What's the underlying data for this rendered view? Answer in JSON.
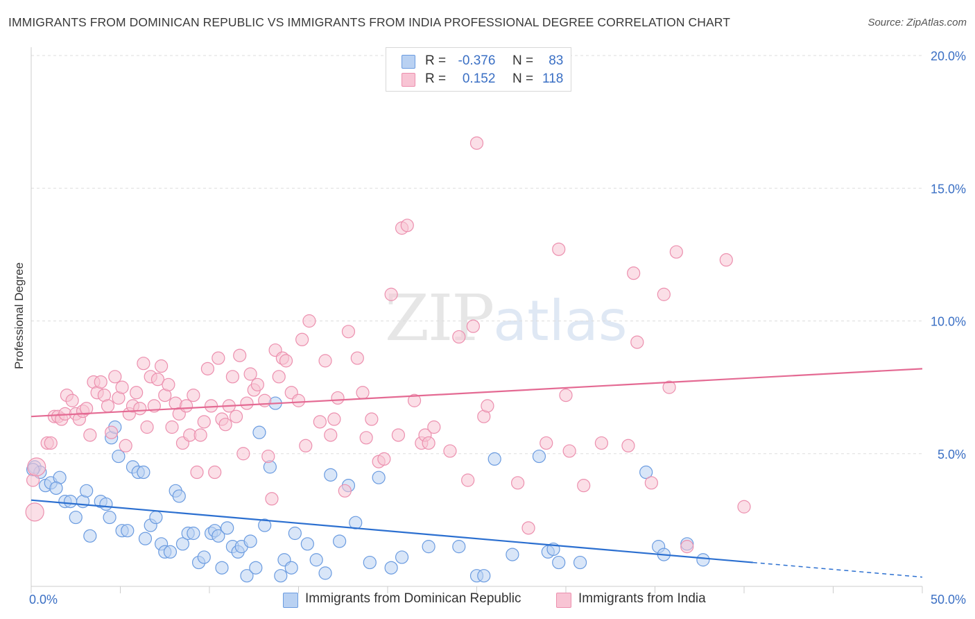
{
  "header": {
    "title": "IMMIGRANTS FROM DOMINICAN REPUBLIC VS IMMIGRANTS FROM INDIA PROFESSIONAL DEGREE CORRELATION CHART",
    "source": "Source: ZipAtlas.com"
  },
  "watermark": {
    "zip": "ZIP",
    "atlas": "atlas"
  },
  "legend": {
    "series1": {
      "r_label": "R =",
      "r_value": "-0.376",
      "n_label": "N =",
      "n_value": "83"
    },
    "series2": {
      "r_label": "R =",
      "r_value": "0.152",
      "n_label": "N =",
      "n_value": "118"
    }
  },
  "colors": {
    "blue_fill": "#b9d1f2",
    "blue_stroke": "#6a9be0",
    "blue_line": "#2b6fd0",
    "pink_fill": "#f8c4d4",
    "pink_stroke": "#ec8fae",
    "pink_line": "#e46a93",
    "axis_label": "#3a6fc4",
    "grid": "#dddddd"
  },
  "chart_data": {
    "type": "scatter",
    "title": "IMMIGRANTS FROM DOMINICAN REPUBLIC VS IMMIGRANTS FROM INDIA PROFESSIONAL DEGREE CORRELATION CHART",
    "ylabel": "Professional Degree",
    "xlabel": "",
    "xlim": [
      0,
      50
    ],
    "ylim": [
      0,
      20
    ],
    "x_tick_labels": [
      "0.0%",
      "50.0%"
    ],
    "y_ticks": [
      5,
      10,
      15,
      20
    ],
    "y_tick_labels": [
      "5.0%",
      "10.0%",
      "15.0%",
      "20.0%"
    ],
    "grid": "horizontal dashed",
    "legend_position": "top-center",
    "series": [
      {
        "name": "Immigrants from Dominican Republic",
        "color": "#6a9be0",
        "trend": {
          "x": [
            0,
            40.5
          ],
          "y": [
            3.25,
            0.9
          ],
          "dashed_to": [
            50,
            0.35
          ]
        },
        "points": [
          [
            0.2,
            4.5
          ],
          [
            0.5,
            4.3
          ],
          [
            0.8,
            3.8
          ],
          [
            1.1,
            3.9
          ],
          [
            1.6,
            4.1
          ],
          [
            1.9,
            3.2
          ],
          [
            2.2,
            3.2
          ],
          [
            2.5,
            2.6
          ],
          [
            2.9,
            3.2
          ],
          [
            3.1,
            3.6
          ],
          [
            3.3,
            1.9
          ],
          [
            3.9,
            3.2
          ],
          [
            4.2,
            3.1
          ],
          [
            4.4,
            2.6
          ],
          [
            4.5,
            5.6
          ],
          [
            4.7,
            6.0
          ],
          [
            4.9,
            4.9
          ],
          [
            5.1,
            2.1
          ],
          [
            5.4,
            2.1
          ],
          [
            5.7,
            4.5
          ],
          [
            6.0,
            4.3
          ],
          [
            6.3,
            4.3
          ],
          [
            6.4,
            1.8
          ],
          [
            6.7,
            2.3
          ],
          [
            7.0,
            2.6
          ],
          [
            7.3,
            1.6
          ],
          [
            7.5,
            1.3
          ],
          [
            7.8,
            1.3
          ],
          [
            8.1,
            3.6
          ],
          [
            8.3,
            3.4
          ],
          [
            8.5,
            1.6
          ],
          [
            8.8,
            2.0
          ],
          [
            9.1,
            2.0
          ],
          [
            9.4,
            0.9
          ],
          [
            9.7,
            1.1
          ],
          [
            10.1,
            2.0
          ],
          [
            10.3,
            2.1
          ],
          [
            10.5,
            1.9
          ],
          [
            10.7,
            0.7
          ],
          [
            11.0,
            2.2
          ],
          [
            11.3,
            1.5
          ],
          [
            11.6,
            1.3
          ],
          [
            11.8,
            1.5
          ],
          [
            12.1,
            0.4
          ],
          [
            12.3,
            1.7
          ],
          [
            12.6,
            0.7
          ],
          [
            12.8,
            5.8
          ],
          [
            13.1,
            2.3
          ],
          [
            13.4,
            4.5
          ],
          [
            13.7,
            6.9
          ],
          [
            14.0,
            0.4
          ],
          [
            14.2,
            1.0
          ],
          [
            14.6,
            0.7
          ],
          [
            14.8,
            2.0
          ],
          [
            15.5,
            1.6
          ],
          [
            16.0,
            1.0
          ],
          [
            16.5,
            0.5
          ],
          [
            16.8,
            4.2
          ],
          [
            17.3,
            1.7
          ],
          [
            17.8,
            3.8
          ],
          [
            18.2,
            2.4
          ],
          [
            19.0,
            0.9
          ],
          [
            19.5,
            4.1
          ],
          [
            20.2,
            0.7
          ],
          [
            20.8,
            1.1
          ],
          [
            22.3,
            1.5
          ],
          [
            24.0,
            1.5
          ],
          [
            25.0,
            0.4
          ],
          [
            25.4,
            0.4
          ],
          [
            26.0,
            4.8
          ],
          [
            27.0,
            1.2
          ],
          [
            28.5,
            4.9
          ],
          [
            29.0,
            1.3
          ],
          [
            29.3,
            1.4
          ],
          [
            29.6,
            0.9
          ],
          [
            30.8,
            0.9
          ],
          [
            34.5,
            4.3
          ],
          [
            35.2,
            1.5
          ],
          [
            35.5,
            1.2
          ],
          [
            36.8,
            1.6
          ],
          [
            37.7,
            1.0
          ],
          [
            0.1,
            4.4
          ],
          [
            1.4,
            3.7
          ]
        ]
      },
      {
        "name": "Immigrants from India",
        "color": "#ec8fae",
        "trend": {
          "x": [
            0,
            50
          ],
          "y": [
            6.4,
            8.2
          ]
        },
        "points": [
          [
            0.1,
            4.0
          ],
          [
            0.2,
            2.8
          ],
          [
            0.3,
            4.5
          ],
          [
            0.9,
            5.4
          ],
          [
            1.1,
            5.4
          ],
          [
            1.3,
            6.4
          ],
          [
            1.5,
            6.4
          ],
          [
            1.7,
            6.3
          ],
          [
            1.9,
            6.5
          ],
          [
            2.0,
            7.2
          ],
          [
            2.3,
            7.0
          ],
          [
            2.5,
            6.5
          ],
          [
            2.7,
            6.3
          ],
          [
            2.9,
            6.6
          ],
          [
            3.1,
            6.7
          ],
          [
            3.3,
            5.7
          ],
          [
            3.5,
            7.7
          ],
          [
            3.7,
            7.3
          ],
          [
            3.9,
            7.7
          ],
          [
            4.1,
            7.2
          ],
          [
            4.3,
            6.8
          ],
          [
            4.5,
            5.8
          ],
          [
            4.7,
            7.9
          ],
          [
            4.9,
            7.1
          ],
          [
            5.1,
            7.5
          ],
          [
            5.3,
            5.3
          ],
          [
            5.5,
            6.5
          ],
          [
            5.7,
            6.8
          ],
          [
            5.9,
            7.3
          ],
          [
            6.1,
            6.7
          ],
          [
            6.3,
            8.4
          ],
          [
            6.5,
            6.0
          ],
          [
            6.7,
            7.9
          ],
          [
            6.9,
            6.8
          ],
          [
            7.1,
            7.8
          ],
          [
            7.3,
            8.3
          ],
          [
            7.5,
            7.2
          ],
          [
            7.7,
            7.6
          ],
          [
            7.9,
            6.0
          ],
          [
            8.1,
            6.9
          ],
          [
            8.3,
            6.5
          ],
          [
            8.5,
            5.4
          ],
          [
            8.7,
            6.8
          ],
          [
            8.9,
            5.7
          ],
          [
            9.1,
            7.2
          ],
          [
            9.3,
            4.3
          ],
          [
            9.5,
            5.7
          ],
          [
            9.7,
            6.2
          ],
          [
            9.9,
            8.2
          ],
          [
            10.1,
            6.8
          ],
          [
            10.3,
            4.3
          ],
          [
            10.5,
            8.6
          ],
          [
            10.7,
            6.3
          ],
          [
            10.9,
            6.1
          ],
          [
            11.1,
            6.8
          ],
          [
            11.3,
            7.9
          ],
          [
            11.5,
            6.4
          ],
          [
            11.7,
            8.7
          ],
          [
            11.9,
            5.0
          ],
          [
            12.1,
            6.9
          ],
          [
            12.3,
            8.0
          ],
          [
            12.5,
            7.4
          ],
          [
            12.7,
            7.6
          ],
          [
            13.1,
            7.0
          ],
          [
            13.3,
            4.9
          ],
          [
            13.5,
            3.3
          ],
          [
            13.7,
            8.9
          ],
          [
            13.9,
            7.9
          ],
          [
            14.1,
            8.6
          ],
          [
            14.3,
            8.5
          ],
          [
            14.6,
            7.3
          ],
          [
            15.0,
            7.0
          ],
          [
            15.2,
            9.3
          ],
          [
            15.4,
            5.3
          ],
          [
            15.6,
            10.0
          ],
          [
            16.2,
            6.2
          ],
          [
            16.5,
            8.5
          ],
          [
            16.8,
            5.7
          ],
          [
            17.0,
            6.3
          ],
          [
            17.2,
            7.1
          ],
          [
            17.6,
            3.6
          ],
          [
            17.8,
            9.6
          ],
          [
            18.3,
            8.6
          ],
          [
            18.6,
            7.3
          ],
          [
            18.8,
            5.6
          ],
          [
            19.1,
            6.3
          ],
          [
            19.5,
            4.7
          ],
          [
            19.8,
            4.8
          ],
          [
            20.2,
            11.0
          ],
          [
            20.6,
            5.7
          ],
          [
            20.8,
            13.5
          ],
          [
            21.1,
            13.6
          ],
          [
            21.5,
            7.0
          ],
          [
            21.9,
            5.4
          ],
          [
            22.1,
            5.7
          ],
          [
            22.3,
            5.4
          ],
          [
            22.6,
            6.0
          ],
          [
            23.5,
            5.1
          ],
          [
            24.0,
            9.4
          ],
          [
            24.5,
            4.0
          ],
          [
            24.8,
            9.8
          ],
          [
            25.0,
            16.7
          ],
          [
            25.4,
            6.4
          ],
          [
            25.6,
            6.8
          ],
          [
            27.3,
            3.9
          ],
          [
            27.9,
            2.2
          ],
          [
            28.9,
            5.4
          ],
          [
            29.6,
            12.7
          ],
          [
            30.0,
            7.2
          ],
          [
            31.0,
            3.8
          ],
          [
            32.0,
            5.4
          ],
          [
            33.5,
            5.3
          ],
          [
            33.8,
            11.8
          ],
          [
            34.0,
            9.2
          ],
          [
            34.8,
            3.9
          ],
          [
            35.5,
            11.0
          ],
          [
            35.8,
            7.5
          ],
          [
            36.2,
            12.6
          ],
          [
            36.8,
            1.5
          ],
          [
            39.0,
            12.3
          ],
          [
            40.0,
            3.0
          ],
          [
            30.2,
            5.1
          ]
        ]
      }
    ]
  },
  "bottom_legend": {
    "series1": "Immigrants from Dominican Republic",
    "series2": "Immigrants from India"
  },
  "axes": {
    "y_title": "Professional Degree",
    "x_left": "0.0%",
    "x_right": "50.0%"
  }
}
